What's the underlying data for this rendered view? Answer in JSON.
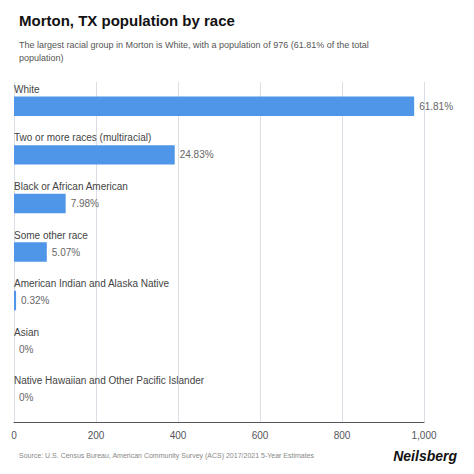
{
  "chart_data": {
    "type": "bar",
    "orientation": "horizontal",
    "title": "Morton, TX population by race",
    "subtitle": "The largest racial group in Morton is White, with a population of 976 (61.81% of the total\npopulation)",
    "categories": [
      "White",
      "Two or more races (multiracial)",
      "Black or African American",
      "Some other race",
      "American Indian and Alaska Native",
      "Asian",
      "Native Hawaiian and Other Pacific Islander"
    ],
    "values": [
      976,
      392,
      126,
      80,
      5,
      0,
      0
    ],
    "value_labels": [
      "61.81%",
      "24.83%",
      "7.98%",
      "5.07%",
      "0.32%",
      "0%",
      "0%"
    ],
    "color": "#4f96e8",
    "xlim": [
      0,
      1000
    ],
    "xticks": [
      0,
      200,
      400,
      600,
      800,
      1000
    ],
    "grid": true,
    "annotations": [
      "Source: U.S. Census Bureau, American Community Survey (ACS) 2017/2021 5-Year Estimates",
      "Neilsberg"
    ]
  }
}
